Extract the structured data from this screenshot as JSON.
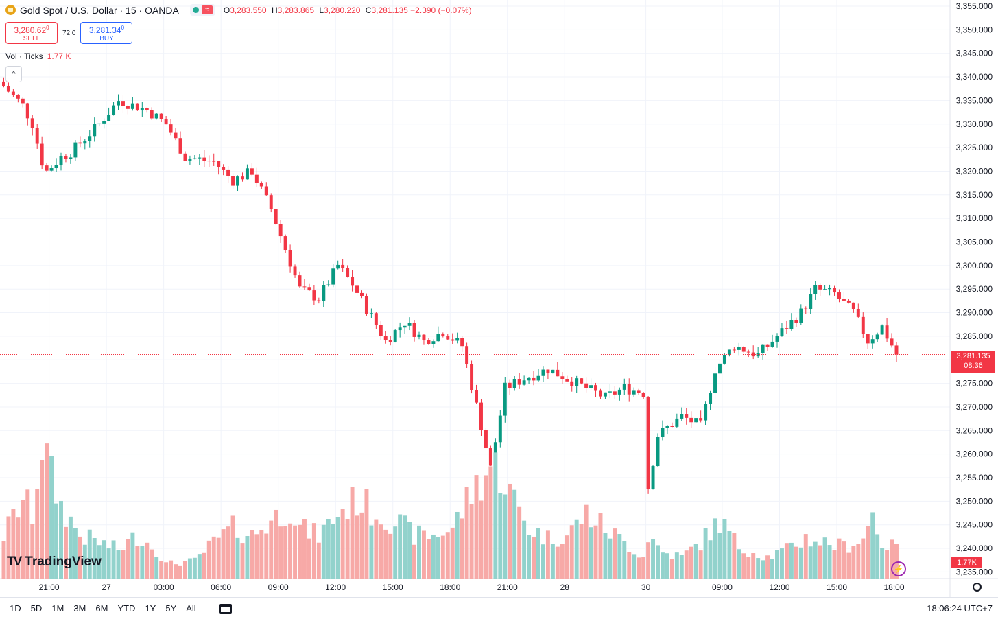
{
  "header": {
    "title": "Gold Spot / U.S. Dollar · 15 · OANDA",
    "ohlc": {
      "o_label": "O",
      "o": "3,283.550",
      "h_label": "H",
      "h": "3,283.865",
      "l_label": "L",
      "l": "3,280.220",
      "c_label": "C",
      "c": "3,281.135",
      "change": "−2.390 (−0.07%)"
    }
  },
  "trade": {
    "sell_price": "3,280.62",
    "sell_price_sup": "0",
    "sell_label": "SELL",
    "spread": "72.0",
    "buy_price": "3,281.34",
    "buy_price_sup": "0",
    "buy_label": "BUY"
  },
  "volume_legend": {
    "label": "Vol · Ticks",
    "value": "1.77 K"
  },
  "price_label": {
    "price": "3,281.135",
    "countdown": "08:36"
  },
  "volume_label": "1.77K",
  "logo": "TradingView",
  "timeframes": [
    "1D",
    "5D",
    "1M",
    "3M",
    "6M",
    "YTD",
    "1Y",
    "5Y",
    "All"
  ],
  "clock": "18:06:24 UTC+7",
  "colors": {
    "up": "#089981",
    "down": "#f23645",
    "vol_up": "#92d2cc",
    "vol_down": "#f7a9a7",
    "grid": "#f0f3fa"
  },
  "chart_data": {
    "type": "candlestick",
    "symbol": "Gold Spot / U.S. Dollar",
    "interval": "15",
    "ylim": [
      3235,
      3355
    ],
    "y_ticks": [
      "3,355.000",
      "3,350.000",
      "3,345.000",
      "3,340.000",
      "3,335.000",
      "3,330.000",
      "3,325.000",
      "3,320.000",
      "3,315.000",
      "3,310.000",
      "3,305.000",
      "3,300.000",
      "3,295.000",
      "3,290.000",
      "3,285.000",
      "3,280.000",
      "3,275.000",
      "3,270.000",
      "3,265.000",
      "3,260.000",
      "3,255.000",
      "3,250.000",
      "3,245.000",
      "3,240.000",
      "3,235.000"
    ],
    "x_ticks": [
      {
        "label": "21:00",
        "bar": 10
      },
      {
        "label": "27",
        "bar": 22
      },
      {
        "label": "03:00",
        "bar": 34
      },
      {
        "label": "06:00",
        "bar": 46
      },
      {
        "label": "09:00",
        "bar": 58
      },
      {
        "label": "12:00",
        "bar": 70
      },
      {
        "label": "15:00",
        "bar": 82
      },
      {
        "label": "18:00",
        "bar": 94
      },
      {
        "label": "21:00",
        "bar": 106
      },
      {
        "label": "28",
        "bar": 118
      },
      {
        "label": "30",
        "bar": 135
      },
      {
        "label": "09:00",
        "bar": 151
      },
      {
        "label": "12:00",
        "bar": 163
      },
      {
        "label": "15:00",
        "bar": 175
      },
      {
        "label": "18:00",
        "bar": 187
      }
    ],
    "last_price": 3281.135,
    "anchors": [
      [
        0,
        3338
      ],
      [
        4,
        3334
      ],
      [
        6,
        3330
      ],
      [
        8,
        3322
      ],
      [
        9,
        3320
      ],
      [
        12,
        3323
      ],
      [
        14,
        3324
      ],
      [
        20,
        3330
      ],
      [
        24,
        3335
      ],
      [
        30,
        3333
      ],
      [
        34,
        3330
      ],
      [
        38,
        3323
      ],
      [
        44,
        3322
      ],
      [
        48,
        3318
      ],
      [
        52,
        3320
      ],
      [
        56,
        3312
      ],
      [
        62,
        3295
      ],
      [
        66,
        3293
      ],
      [
        70,
        3300
      ],
      [
        73,
        3296
      ],
      [
        80,
        3284
      ],
      [
        84,
        3288
      ],
      [
        88,
        3284
      ],
      [
        92,
        3286
      ],
      [
        96,
        3283
      ],
      [
        100,
        3266
      ],
      [
        102,
        3257
      ],
      [
        105,
        3274
      ],
      [
        109,
        3276
      ],
      [
        114,
        3278
      ],
      [
        120,
        3275
      ],
      [
        126,
        3272
      ],
      [
        130,
        3274
      ],
      [
        134,
        3273
      ],
      [
        135,
        3253
      ],
      [
        137,
        3264
      ],
      [
        142,
        3268
      ],
      [
        146,
        3266
      ],
      [
        149,
        3278
      ],
      [
        153,
        3283
      ],
      [
        158,
        3281
      ],
      [
        162,
        3285
      ],
      [
        167,
        3290
      ],
      [
        170,
        3295
      ],
      [
        174,
        3294
      ],
      [
        178,
        3290
      ],
      [
        181,
        3284
      ],
      [
        184,
        3287
      ],
      [
        187,
        3281.135
      ]
    ],
    "volume_anchors": [
      [
        0,
        0.3
      ],
      [
        4,
        0.55
      ],
      [
        6,
        0.45
      ],
      [
        8,
        0.95
      ],
      [
        10,
        0.7
      ],
      [
        12,
        0.5
      ],
      [
        16,
        0.3
      ],
      [
        20,
        0.25
      ],
      [
        24,
        0.2
      ],
      [
        28,
        0.3
      ],
      [
        32,
        0.2
      ],
      [
        34,
        0.1
      ],
      [
        40,
        0.12
      ],
      [
        44,
        0.25
      ],
      [
        48,
        0.35
      ],
      [
        52,
        0.3
      ],
      [
        56,
        0.4
      ],
      [
        60,
        0.5
      ],
      [
        62,
        0.35
      ],
      [
        66,
        0.3
      ],
      [
        70,
        0.45
      ],
      [
        74,
        0.55
      ],
      [
        78,
        0.45
      ],
      [
        82,
        0.4
      ],
      [
        86,
        0.3
      ],
      [
        90,
        0.3
      ],
      [
        94,
        0.35
      ],
      [
        98,
        0.6
      ],
      [
        102,
        0.78
      ],
      [
        104,
        0.75
      ],
      [
        106,
        0.6
      ],
      [
        110,
        0.35
      ],
      [
        114,
        0.28
      ],
      [
        118,
        0.3
      ],
      [
        122,
        0.45
      ],
      [
        126,
        0.35
      ],
      [
        130,
        0.25
      ],
      [
        134,
        0.15
      ],
      [
        135,
        0.3
      ],
      [
        138,
        0.18
      ],
      [
        142,
        0.15
      ],
      [
        146,
        0.25
      ],
      [
        150,
        0.4
      ],
      [
        154,
        0.22
      ],
      [
        160,
        0.15
      ],
      [
        164,
        0.2
      ],
      [
        168,
        0.28
      ],
      [
        172,
        0.25
      ],
      [
        176,
        0.22
      ],
      [
        180,
        0.28
      ],
      [
        182,
        0.45
      ],
      [
        184,
        0.25
      ],
      [
        187,
        0.2
      ]
    ],
    "num_bars": 188
  }
}
